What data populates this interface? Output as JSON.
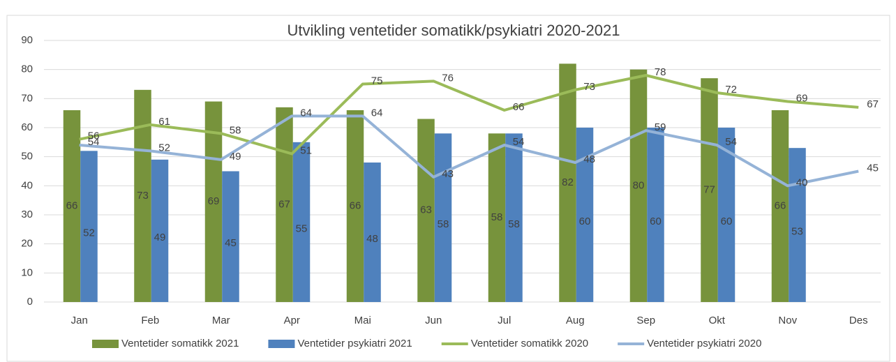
{
  "chart_data": {
    "type": "bar_line",
    "title": "Utvikling ventetider somatikk/psykiatri 2020-2021",
    "categories": [
      "Jan",
      "Feb",
      "Mar",
      "Apr",
      "Mai",
      "Jun",
      "Jul",
      "Aug",
      "Sep",
      "Okt",
      "Nov",
      "Des"
    ],
    "series": [
      {
        "name": "Ventetider somatikk 2021",
        "type": "bar",
        "color": "#77933c",
        "values": [
          66,
          73,
          69,
          67,
          66,
          63,
          58,
          82,
          80,
          77,
          66,
          null
        ]
      },
      {
        "name": "Ventetider psykiatri 2021",
        "type": "bar",
        "color": "#4f81bd",
        "values": [
          52,
          49,
          45,
          55,
          48,
          58,
          58,
          60,
          60,
          60,
          53,
          null
        ]
      },
      {
        "name": "Ventetider somatikk 2020",
        "type": "line",
        "color": "#9bbb59",
        "values": [
          56,
          61,
          58,
          51,
          75,
          76,
          66,
          73,
          78,
          72,
          69,
          67
        ]
      },
      {
        "name": "Ventetider psykiatri 2020",
        "type": "line",
        "color": "#95b3d7",
        "values": [
          54,
          52,
          49,
          64,
          64,
          43,
          54,
          48,
          59,
          54,
          40,
          45
        ]
      }
    ],
    "ylim": [
      0,
      90
    ],
    "yticks": [
      0,
      10,
      20,
      30,
      40,
      50,
      60,
      70,
      80,
      90
    ],
    "grid": true,
    "legend": "bottom"
  }
}
